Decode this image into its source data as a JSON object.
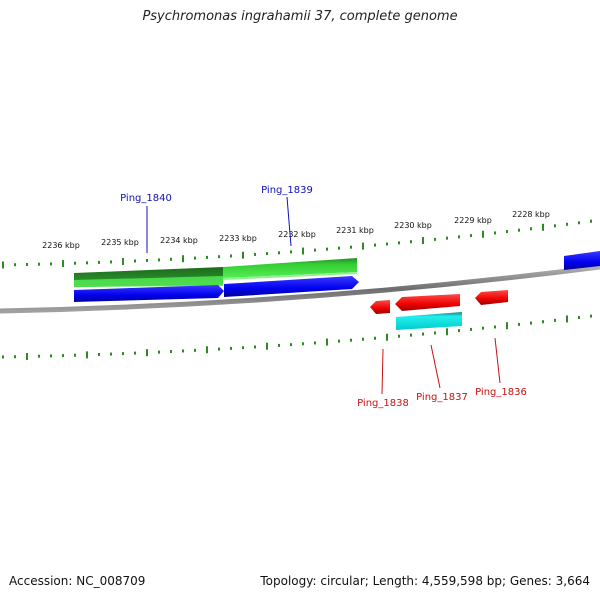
{
  "title": "Psychromonas ingrahamii 37, complete genome",
  "footer": {
    "accession": "Accession: NC_008709",
    "summary": "Topology: circular; Length: 4,559,598 bp; Genes: 3,664"
  },
  "colors": {
    "backbone": "#8a8a8a",
    "tick": "#2e8b22",
    "forward_gene": "#1010ee",
    "reverse_gene": "#ee1010",
    "forward_cds": "#2aa12a",
    "reverse_cds": "#11dddd",
    "forward_label": "#1010bb",
    "reverse_label": "#cc1111"
  },
  "scale_labels": [
    "2236 kbp",
    "2235 kbp",
    "2234 kbp",
    "2233 kbp",
    "2232 kbp",
    "2231 kbp",
    "2230 kbp",
    "2229 kbp",
    "2228 kbp"
  ],
  "genes": {
    "forward": [
      {
        "name": "Ping_1840",
        "start_kbp": 2234.6,
        "end_kbp": 2233.3
      },
      {
        "name": "Ping_1839",
        "start_kbp": 2233.3,
        "end_kbp": 2231.0
      }
    ],
    "reverse": [
      {
        "name": "Ping_1838",
        "start_kbp": 2230.95,
        "end_kbp": 2230.65
      },
      {
        "name": "Ping_1837",
        "start_kbp": 2230.55,
        "end_kbp": 2229.55
      },
      {
        "name": "Ping_1836",
        "start_kbp": 2229.3,
        "end_kbp": 2228.85
      }
    ]
  }
}
